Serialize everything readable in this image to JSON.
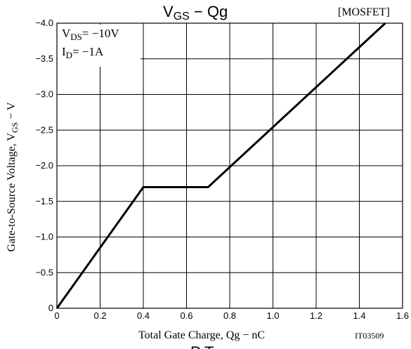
{
  "chart_data": {
    "type": "line",
    "title_main": "V",
    "title_sub": "GS",
    "title_rest": " − Qg",
    "tag": "[MOSFET]",
    "xlabel": "Total Gate Charge, Qg  −  nC",
    "ylabel_main": "Gate-to-Source Voltage, V",
    "ylabel_sub": "GS",
    "ylabel_rest": "  −  V",
    "code": "IT03509",
    "annotation1_main": "V",
    "annotation1_sub": "DS",
    "annotation1_rest": "= −10V",
    "annotation2_main": "I",
    "annotation2_sub": "D",
    "annotation2_rest": "= −1A",
    "bottom_cutoff_text": "P     T",
    "xlim": [
      0,
      1.6
    ],
    "ylim": [
      0,
      -4.0
    ],
    "x_ticks": [
      0,
      0.2,
      0.4,
      0.6,
      0.8,
      1.0,
      1.2,
      1.4,
      1.6
    ],
    "x_tick_labels": [
      "0",
      "0.2",
      "0.4",
      "0.6",
      "0.8",
      "1.0",
      "1.2",
      "1.4",
      "1.6"
    ],
    "y_ticks": [
      0,
      -0.5,
      -1.0,
      -1.5,
      -2.0,
      -2.5,
      -3.0,
      -3.5,
      -4.0
    ],
    "y_tick_labels": [
      "0",
      "−0.5",
      "−1.0",
      "−1.5",
      "−2.0",
      "−2.5",
      "−3.0",
      "−3.5",
      "−4.0"
    ],
    "grid": true,
    "series": [
      {
        "x": [
          0,
          0.4,
          0.7,
          1.52
        ],
        "y": [
          0,
          -1.7,
          -1.7,
          -4.0
        ]
      }
    ]
  }
}
